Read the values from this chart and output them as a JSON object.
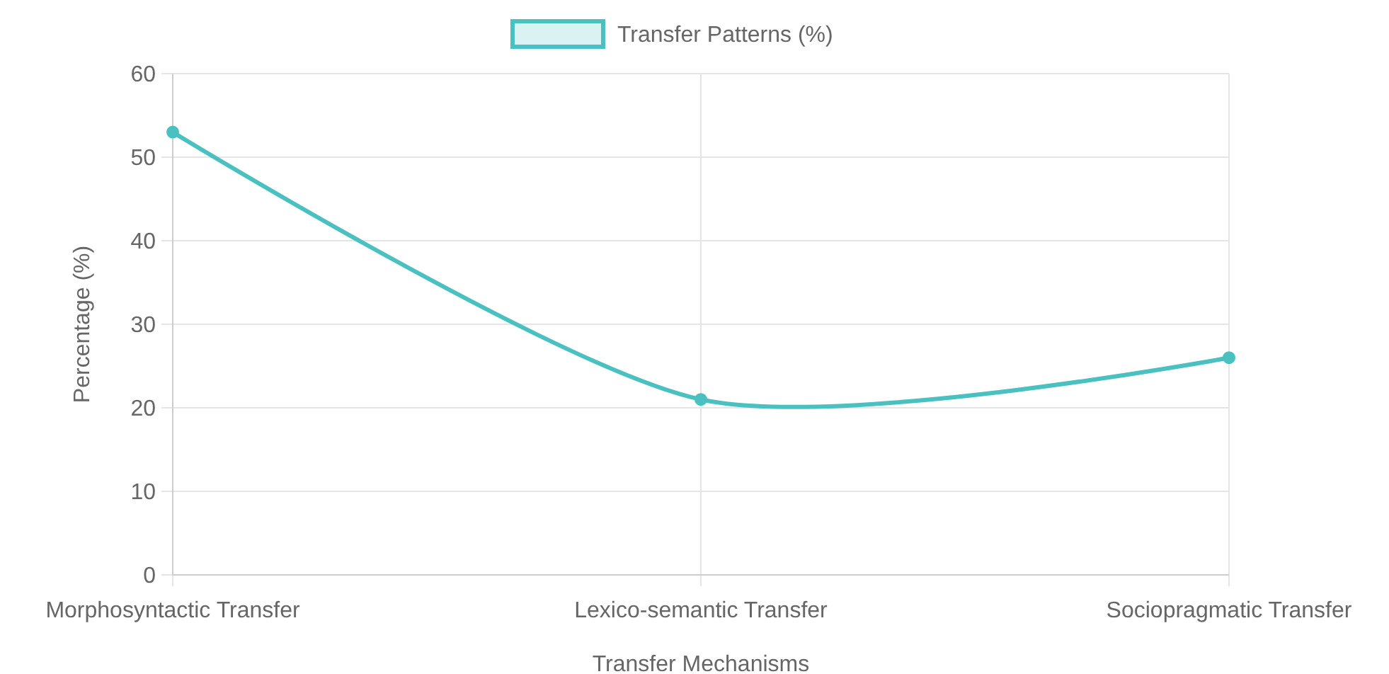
{
  "chart_data": {
    "type": "line",
    "xlabel": "Transfer Mechanisms",
    "ylabel": "Percentage (%)",
    "categories": [
      "Morphosyntactic Transfer",
      "Lexico-semantic Transfer",
      "Sociopragmatic Transfer"
    ],
    "series": [
      {
        "name": "Transfer Patterns (%)",
        "color": "#4bc0c0",
        "values": [
          53,
          21,
          26
        ]
      }
    ],
    "ylim": [
      0,
      60
    ],
    "yticks": [
      0,
      10,
      20,
      30,
      40,
      50,
      60
    ],
    "grid": true,
    "legend": "top",
    "marker": "circle",
    "line_style": "solid"
  }
}
